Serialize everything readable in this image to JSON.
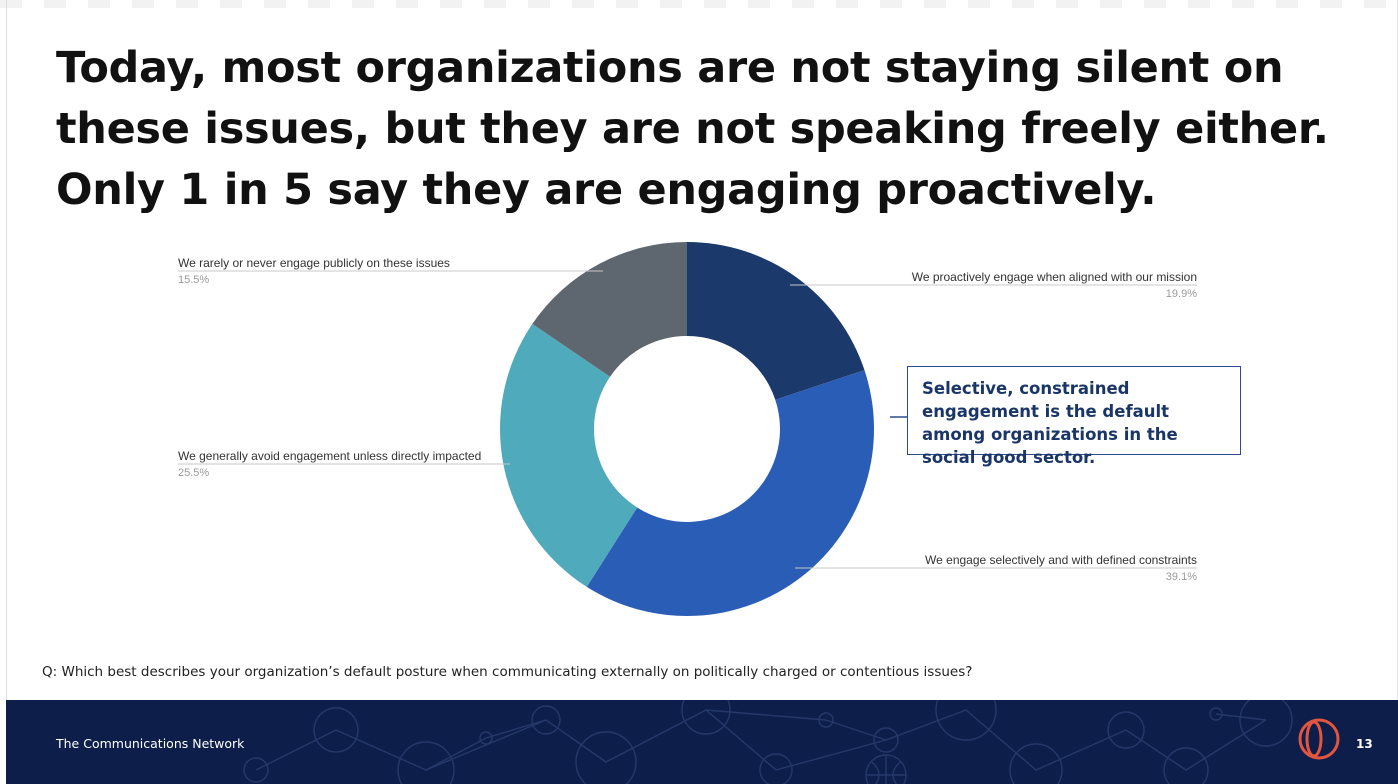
{
  "headline": "Today, most organizations are not staying silent on these issues, but they are not speaking freely either. Only 1 in 5 say they are engaging proactively.",
  "callout": "Selective, constrained engagement is the default among organizations in the social good sector.",
  "question": "Q: Which best describes your organization’s default posture when communicating externally on politically charged or contentious issues?",
  "footer": {
    "org": "The Communications Network",
    "page_number": "13"
  },
  "chart_data": {
    "type": "pie",
    "donut": true,
    "title": "",
    "slices": [
      {
        "label": "We proactively engage when aligned with our mission",
        "value": 19.9,
        "value_label": "19.9%",
        "color": "#1b3a6b"
      },
      {
        "label": "We engage selectively and with defined constraints",
        "value": 39.1,
        "value_label": "39.1%",
        "color": "#2a5db6"
      },
      {
        "label": "We generally avoid engagement unless directly impacted",
        "value": 25.5,
        "value_label": "25.5%",
        "color": "#4faabb"
      },
      {
        "label": "We rarely or never engage publicly on these issues",
        "value": 15.5,
        "value_label": "15.5%",
        "color": "#5e6670"
      }
    ],
    "legend": "none",
    "labels_placement": "outside with leader lines"
  }
}
